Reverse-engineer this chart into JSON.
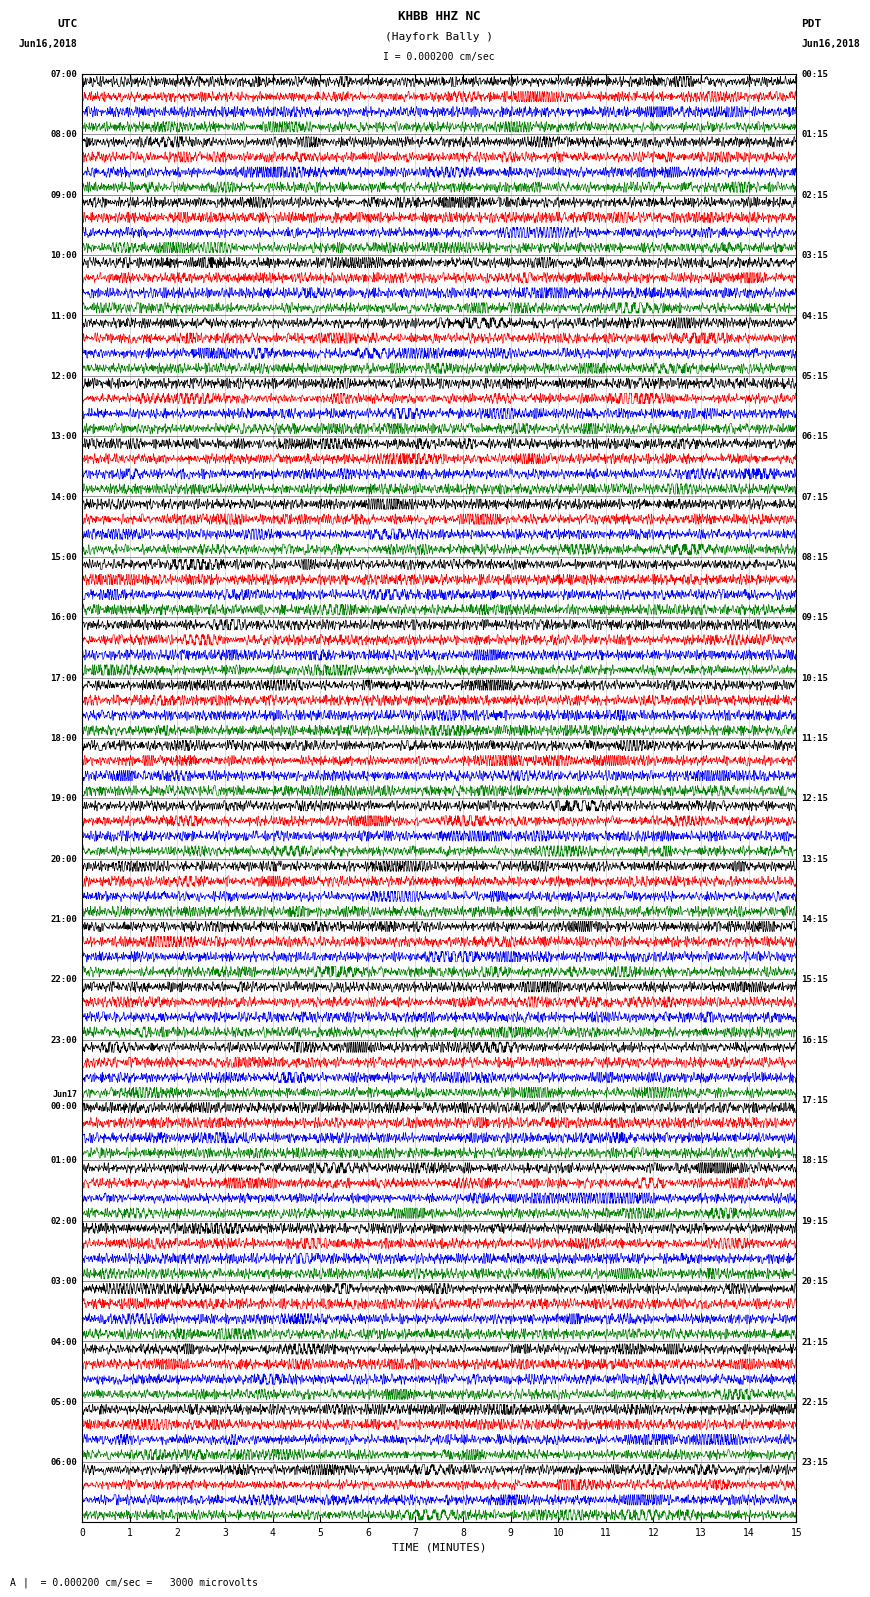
{
  "title_line1": "KHBB HHZ NC",
  "title_line2": "(Hayfork Bally )",
  "title_scale": "I = 0.000200 cm/sec",
  "left_label_top": "UTC",
  "left_label_date": "Jun16,2018",
  "right_label_top": "PDT",
  "right_label_date": "Jun16,2018",
  "xlabel": "TIME (MINUTES)",
  "scale_note": "= 0.000200 cm/sec =   3000 microvolts",
  "scale_note_prefix": "A",
  "utc_times": [
    "07:00",
    "08:00",
    "09:00",
    "10:00",
    "11:00",
    "12:00",
    "13:00",
    "14:00",
    "15:00",
    "16:00",
    "17:00",
    "18:00",
    "19:00",
    "20:00",
    "21:00",
    "22:00",
    "23:00",
    "Jun17\n00:00",
    "01:00",
    "02:00",
    "03:00",
    "04:00",
    "05:00",
    "06:00"
  ],
  "pdt_times": [
    "00:15",
    "01:15",
    "02:15",
    "03:15",
    "04:15",
    "05:15",
    "06:15",
    "07:15",
    "08:15",
    "09:15",
    "10:15",
    "11:15",
    "12:15",
    "13:15",
    "14:15",
    "15:15",
    "16:15",
    "17:15",
    "18:15",
    "19:15",
    "20:15",
    "21:15",
    "22:15",
    "23:15"
  ],
  "trace_colors": [
    "black",
    "red",
    "blue",
    "green"
  ],
  "n_rows": 24,
  "traces_per_row": 4,
  "x_min": 0,
  "x_max": 15,
  "x_ticks": [
    0,
    1,
    2,
    3,
    4,
    5,
    6,
    7,
    8,
    9,
    10,
    11,
    12,
    13,
    14,
    15
  ],
  "fig_width": 8.5,
  "fig_height": 16.13,
  "background_color": "white",
  "noise_seed": 42,
  "n_points": 3000,
  "trace_amplitude": 0.38,
  "vertical_lines_x": [
    1,
    2,
    3,
    4,
    5,
    6,
    7,
    8,
    9,
    10,
    11,
    12,
    13,
    14
  ]
}
